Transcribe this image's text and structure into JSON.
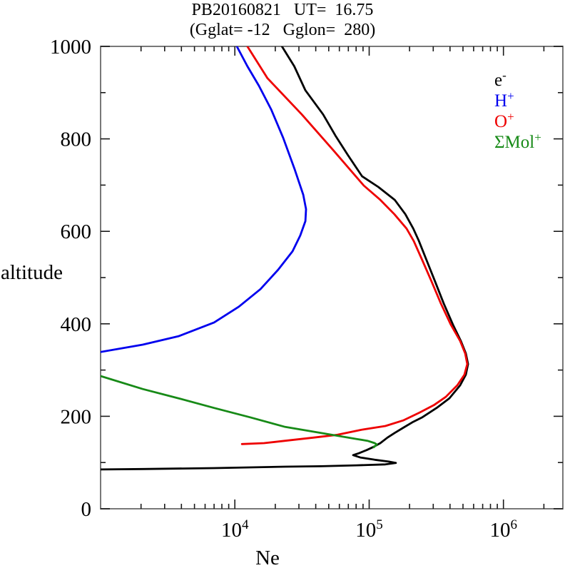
{
  "title": "PB20160821   UT=  16.75",
  "subtitle": "(Gglat= -12   Gglon=  280)",
  "chart_data": {
    "type": "line",
    "title": "PB20160821   UT=  16.75",
    "subtitle": "(Gglat= -12   Gglon=  280)",
    "xlabel": "Ne",
    "ylabel": "altitude",
    "x_scale": "log",
    "xlim": [
      1000,
      2770000
    ],
    "ylim": [
      0,
      1000
    ],
    "x_major_tick_exponents": [
      4,
      5,
      6
    ],
    "y_major_tick_step": 200,
    "y_minor_tick_step": 100,
    "y_tick_labels": [
      "0",
      "200",
      "400",
      "600",
      "800",
      "1000"
    ],
    "grid": false,
    "legend": {
      "position": "upper-right",
      "entries": [
        {
          "name": "electron",
          "base": "e",
          "sup": "-",
          "color": "#000000"
        },
        {
          "name": "hydrogen-ion",
          "base": "H",
          "sup": "+",
          "color": "#0000ee"
        },
        {
          "name": "oxygen-ion",
          "base": "O",
          "sup": "+",
          "color": "#ee0000"
        },
        {
          "name": "molecular-ions",
          "base": "ΣMol",
          "sup": "+",
          "color": "#178a17"
        }
      ]
    },
    "series": [
      {
        "name": "e-",
        "color": "#000000",
        "points": [
          [
            22400,
            1000
          ],
          [
            27700,
            957
          ],
          [
            33500,
            905
          ],
          [
            45400,
            853
          ],
          [
            56100,
            807
          ],
          [
            69400,
            765
          ],
          [
            88600,
            719
          ],
          [
            117000,
            696
          ],
          [
            155000,
            668
          ],
          [
            186000,
            637
          ],
          [
            213000,
            606
          ],
          [
            234000,
            580
          ],
          [
            268000,
            537
          ],
          [
            310000,
            491
          ],
          [
            359000,
            444
          ],
          [
            421000,
            398
          ],
          [
            482000,
            363
          ],
          [
            525000,
            336
          ],
          [
            545000,
            313
          ],
          [
            525000,
            290
          ],
          [
            476000,
            267
          ],
          [
            396000,
            239
          ],
          [
            318000,
            218
          ],
          [
            249000,
            198
          ],
          [
            210000,
            187
          ],
          [
            181000,
            176
          ],
          [
            155000,
            164
          ],
          [
            137000,
            154
          ],
          [
            121000,
            142
          ],
          [
            108000,
            134
          ],
          [
            95900,
            127
          ],
          [
            83800,
            120
          ],
          [
            76000,
            116
          ],
          [
            85800,
            111
          ],
          [
            110000,
            106
          ],
          [
            140000,
            102
          ],
          [
            158000,
            99
          ],
          [
            132000,
            96
          ],
          [
            80700,
            94
          ],
          [
            43800,
            92
          ],
          [
            23700,
            91
          ],
          [
            7000,
            88
          ],
          [
            2060,
            86
          ],
          [
            1000,
            85
          ]
        ]
      },
      {
        "name": "H+",
        "color": "#0000ee",
        "points": [
          [
            10350,
            1000
          ],
          [
            12400,
            957
          ],
          [
            15100,
            915
          ],
          [
            18600,
            864
          ],
          [
            22900,
            802
          ],
          [
            27900,
            734
          ],
          [
            32300,
            679
          ],
          [
            33900,
            648
          ],
          [
            33500,
            622
          ],
          [
            30700,
            591
          ],
          [
            26900,
            557
          ],
          [
            21000,
            517
          ],
          [
            15500,
            475
          ],
          [
            10700,
            437
          ],
          [
            7000,
            403
          ],
          [
            3790,
            373
          ],
          [
            2060,
            355
          ],
          [
            1000,
            339
          ]
        ]
      },
      {
        "name": "O+",
        "color": "#ee0000",
        "points": [
          [
            12400,
            1000
          ],
          [
            17500,
            931
          ],
          [
            31500,
            853
          ],
          [
            53900,
            776
          ],
          [
            91200,
            699
          ],
          [
            121000,
            668
          ],
          [
            154000,
            637
          ],
          [
            190000,
            606
          ],
          [
            215000,
            579
          ],
          [
            249000,
            537
          ],
          [
            292000,
            491
          ],
          [
            342000,
            444
          ],
          [
            406000,
            398
          ],
          [
            476000,
            363
          ],
          [
            519000,
            336
          ],
          [
            538000,
            313
          ],
          [
            512000,
            290
          ],
          [
            453000,
            267
          ],
          [
            372000,
            242
          ],
          [
            303000,
            224
          ],
          [
            237000,
            208
          ],
          [
            179000,
            191
          ],
          [
            132000,
            179
          ],
          [
            87900,
            171
          ],
          [
            58100,
            160
          ],
          [
            38800,
            154
          ],
          [
            23700,
            147
          ],
          [
            16500,
            142
          ],
          [
            11300,
            140
          ]
        ]
      },
      {
        "name": "Mol+",
        "color": "#178a17",
        "points": [
          [
            1000,
            287
          ],
          [
            2060,
            259
          ],
          [
            3790,
            239
          ],
          [
            7000,
            218
          ],
          [
            12900,
            198
          ],
          [
            23700,
            177
          ],
          [
            43800,
            164
          ],
          [
            63300,
            156
          ],
          [
            80700,
            151
          ],
          [
            97000,
            147
          ],
          [
            110000,
            142
          ],
          [
            114000,
            139
          ],
          [
            108000,
            133
          ]
        ]
      }
    ]
  }
}
